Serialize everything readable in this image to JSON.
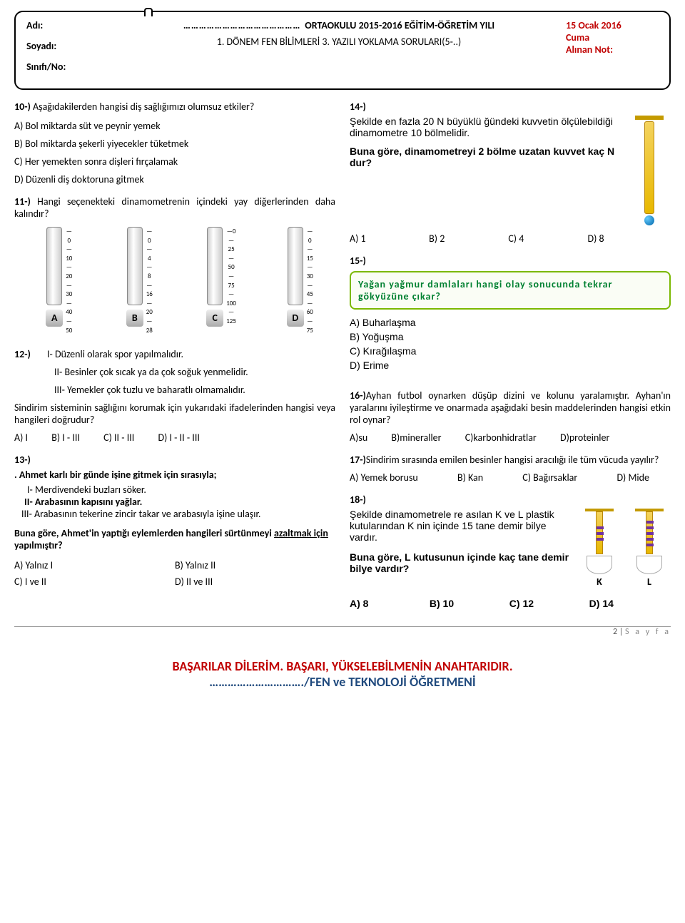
{
  "header": {
    "adi": "Adı:",
    "soyadi": "Soyadı:",
    "sinif": "Sınıfı/No:",
    "dots": "………………………………………",
    "school_suffix": "ORTAOKULU 2015-2016 EĞİTİM-ÖĞRETİM YILI",
    "line2": "1. DÖNEM FEN BİLİMLERİ 3. YAZILI YOKLAMA SORULARI(5-..)",
    "date": "15 Ocak 2016",
    "day": "Cuma",
    "grade": "Alınan Not:"
  },
  "q10": {
    "num": "10-)",
    "text": "Aşağıdakilerden hangisi diş sağlığımızı olumsuz etkiler?",
    "a": "A) Bol miktarda süt ve peynir yemek",
    "b": "B) Bol miktarda şekerli yiyecekler tüketmek",
    "c": "C) Her yemekten sonra dişleri fırçalamak",
    "d": "D) Düzenli diş doktoruna gitmek"
  },
  "q11": {
    "num": "11-)",
    "text": "Hangi seçenekteki dinamometrenin içindeki yay diğerlerinden daha kalındır?",
    "dynos": [
      {
        "label": "A",
        "scale": [
          "0",
          "10",
          "20",
          "30",
          "40",
          "50"
        ]
      },
      {
        "label": "B",
        "scale": [
          "0",
          "4",
          "8",
          "16",
          "20",
          "28"
        ]
      },
      {
        "label": "C",
        "scale": [
          "0",
          "25",
          "50",
          "75",
          "100",
          "125"
        ]
      },
      {
        "label": "D",
        "scale": [
          "0",
          "15",
          "30",
          "45",
          "60",
          "75"
        ]
      }
    ]
  },
  "q12": {
    "num": "12-)",
    "i": "I- Düzenli olarak spor yapılmalıdır.",
    "ii": "II- Besinler çok sıcak ya da çok soğuk yenmelidir.",
    "iii": "III- Yemekler çok tuzlu ve baharatlı olmamalıdır.",
    "stem": "Sindirim sisteminin sağlığını korumak için yukarıdaki ifadelerinden hangisi veya hangileri doğrudur?",
    "a": "A)   I",
    "b": "B)   I - III",
    "c": "C)   II - III",
    "d": "D)   I - II - III"
  },
  "q13": {
    "num": "13-)",
    "intro": "Ahmet karlı bir günde işine gitmek için sırasıyla;",
    "i": "I- Merdivendeki buzları söker.",
    "ii": "II- Arabasının kapısını yağlar.",
    "iii": "III- Arabasının tekerine zincir takar ve arabasıyla işine ulaşır.",
    "stem1": "Buna göre, Ahmet'in yaptığı eylemlerden hangileri sürtünmeyi ",
    "stem_u": "azaltmak için",
    "stem2": " yapılmıştır?",
    "a": "A) Yalnız I",
    "b": "B) Yalnız II",
    "c": "C) I ve II",
    "d": "D) II ve III"
  },
  "q14": {
    "num": "14-)",
    "p1": "Şekilde en fazla 20 N büyüklü ğündeki kuvvetin ölçülebildiği dinamometre 10 bölmelidir.",
    "p2": "Buna göre, dinamometreyi 2 bölme uzatan kuvvet kaç N dur?",
    "a": "A) 1",
    "b": "B) 2",
    "c": "C) 4",
    "d": "D) 8"
  },
  "q15": {
    "num": "15-)",
    "box": "Yağan yağmur damlaları hangi olay sonucunda tekrar gökyüzüne çıkar?",
    "a": "A) Buharlaşma",
    "b": "B) Yoğuşma",
    "c": "C) Kırağılaşma",
    "d": "D) Erime"
  },
  "q16": {
    "num": "16-)",
    "text": "Ayhan futbol oynarken düşüp dizini ve kolunu yaralamıştır. Ayhan'ın yaralarını iyileştirme ve onarmada aşağıdaki besin maddelerinden hangisi etkin rol oynar?",
    "a": "A)su",
    "b": "B)mineraller",
    "c": "C)karbonhidratlar",
    "d": "D)proteinler"
  },
  "q17": {
    "num": "17-)",
    "text": "Sindirim sırasında emilen besinler hangisi aracılığı ile tüm vücuda yayılır?",
    "a": "A) Yemek borusu",
    "b": "B) Kan",
    "c": "C) Bağırsaklar",
    "d": "D) Mide"
  },
  "q18": {
    "num": "18-)",
    "p1": "Şekilde dinamometrele re asılan  K ve L plastik kutularından K nin içinde 15 tane demir bilye vardır.",
    "p2": "Buna göre, L kutusunun içinde kaç tane demir bilye vardır?",
    "klabel": "K",
    "llabel": "L",
    "a": "A) 8",
    "b": "B) 10",
    "c": "C) 12",
    "d": "D) 14"
  },
  "footer": {
    "page": "2 | ",
    "sayfa": "S a y f a",
    "wish": "BAŞARILAR DİLERİM. BAŞARI, YÜKSELEBİLMENİN ANAHTARIDIR.",
    "tdots": "………………………….",
    "teacher": "/FEN ve TEKNOLOJİ ÖĞRETMENİ"
  },
  "colors": {
    "red": "#c00000",
    "blue": "#1f497d",
    "green_border": "#7ab800",
    "green_text": "#008030"
  }
}
